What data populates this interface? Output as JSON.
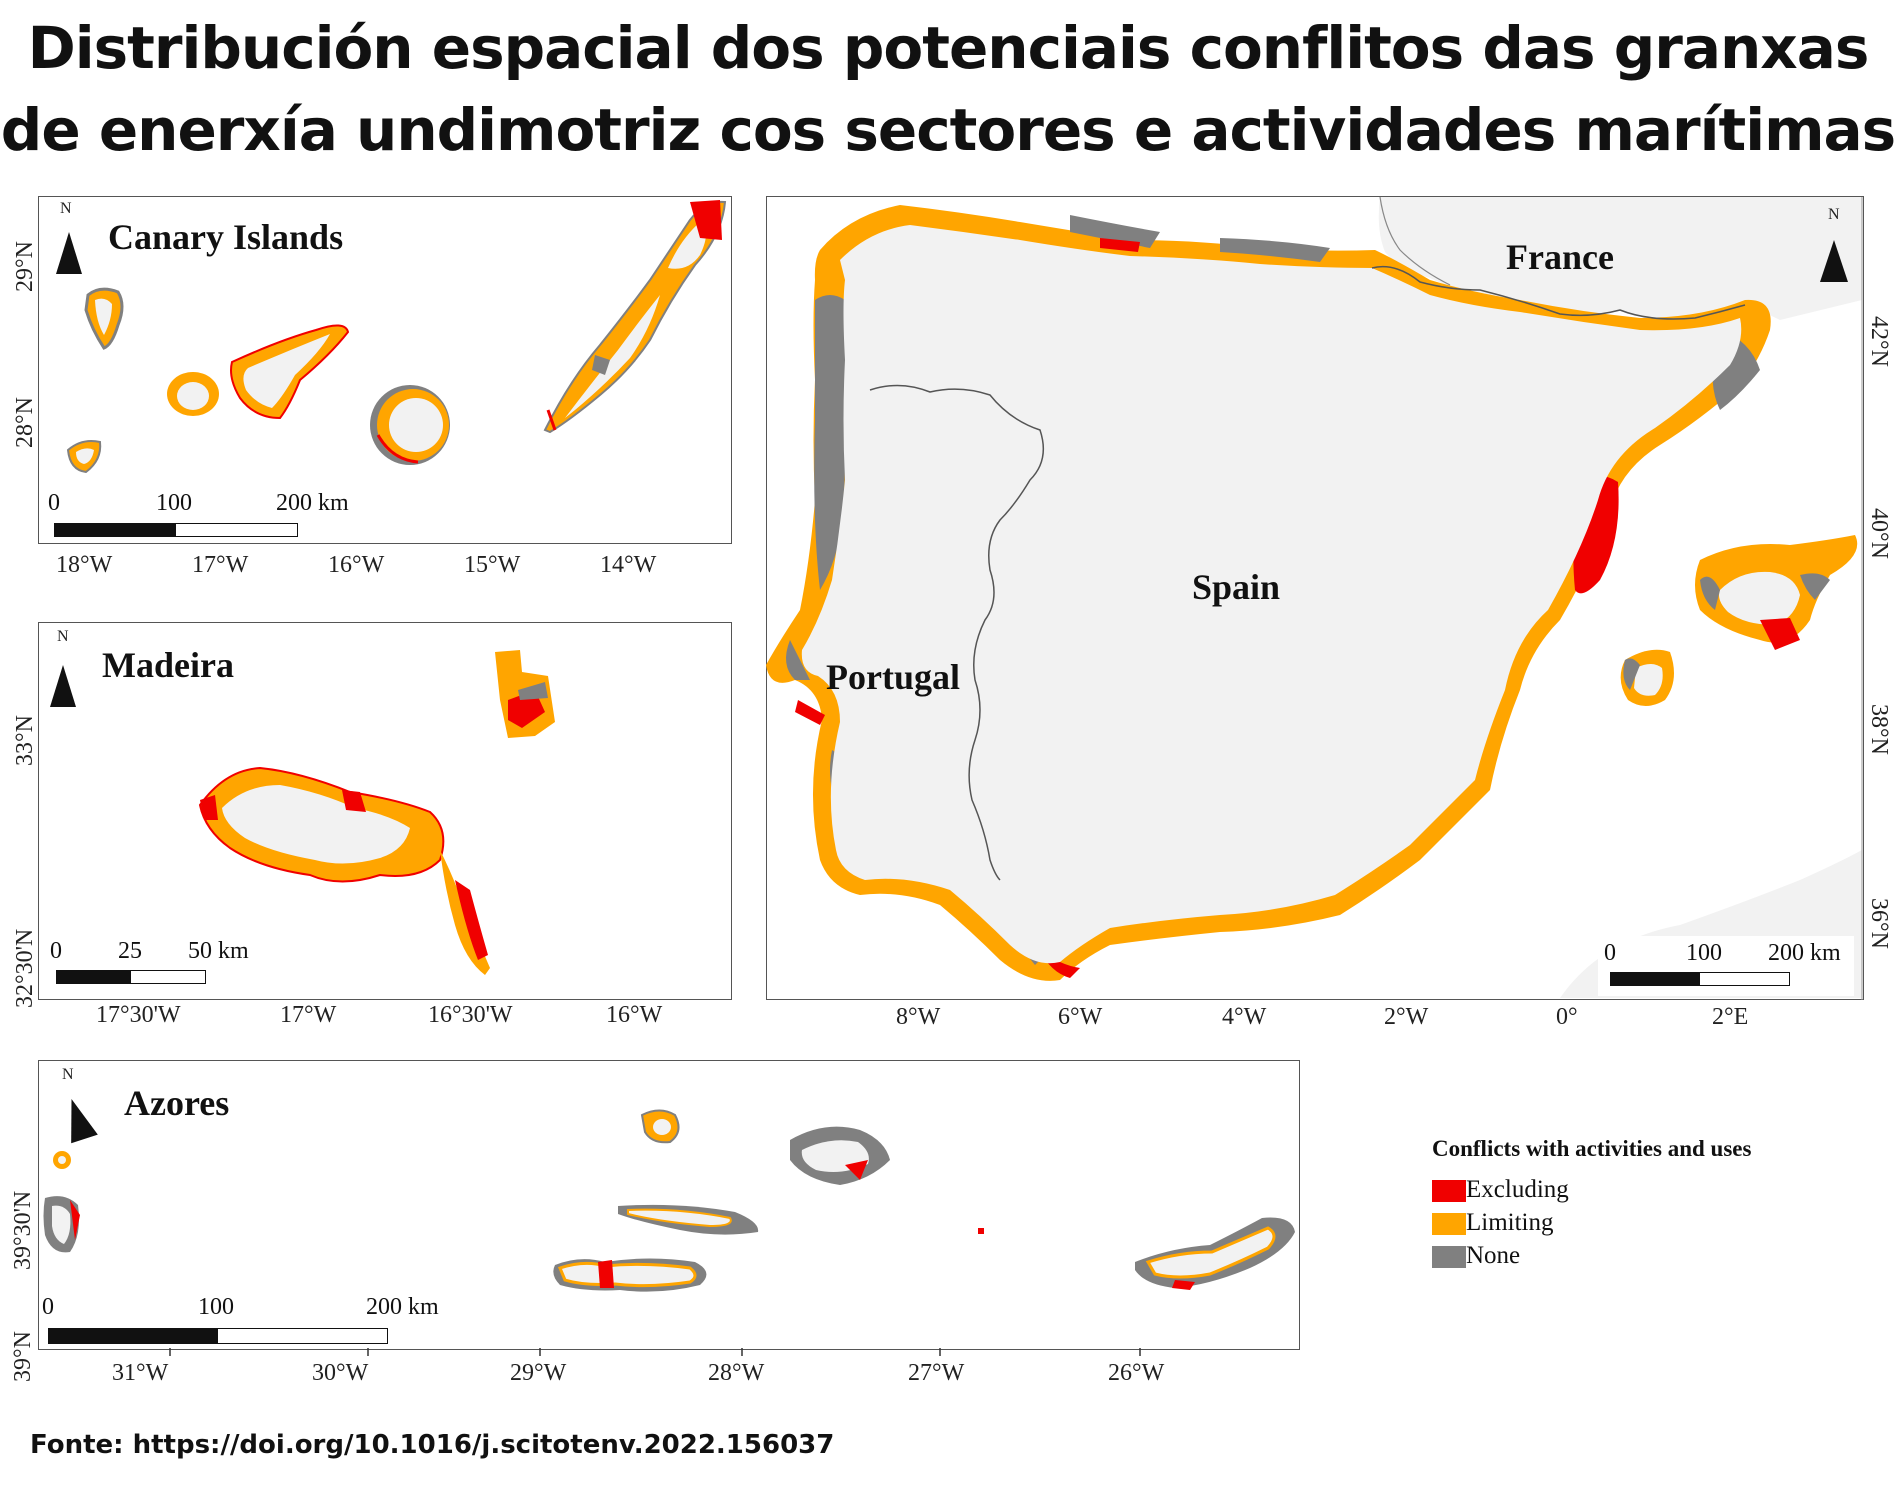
{
  "title_line1": "Distribución espacial dos potenciais conflitos das granxas",
  "title_line2": "de enerxía undimotriz cos sectores e actividades marítimas",
  "source": "Fonte: https://doi.org/10.1016/j.scitotenv.2022.156037",
  "colors": {
    "excluding": "#f00000",
    "limiting": "#ffa500",
    "none": "#808080",
    "land": "#f2f2f2"
  },
  "canary": {
    "label": "Canary Islands",
    "north_arrow": "N",
    "lat_ticks": [
      "29°N",
      "28°N"
    ],
    "lon_ticks": [
      "18°W",
      "17°W",
      "16°W",
      "15°W",
      "14°W"
    ],
    "scalebar": [
      "0",
      "100",
      "200 km"
    ]
  },
  "madeira": {
    "label": "Madeira",
    "north_arrow": "N",
    "lat_ticks": [
      "33°N",
      "32°30'N"
    ],
    "lon_ticks": [
      "17°30'W",
      "17°W",
      "16°30'W",
      "16°W"
    ],
    "scalebar": [
      "0",
      "25",
      "50 km"
    ]
  },
  "azores": {
    "label": "Azores",
    "north_arrow": "N",
    "lat_ticks": [
      "39°30'N",
      "39°N"
    ],
    "lon_ticks": [
      "31°W",
      "30°W",
      "29°W",
      "28°W",
      "27°W",
      "26°W"
    ],
    "scalebar": [
      "0",
      "100",
      "200 km"
    ]
  },
  "iberia": {
    "countries": [
      "France",
      "Spain",
      "Portugal"
    ],
    "north_arrow": "N",
    "lat_ticks": [
      "42°N",
      "40°N",
      "38°N",
      "36°N"
    ],
    "lon_ticks": [
      "8°W",
      "6°W",
      "4°W",
      "2°W",
      "0°",
      "2°E"
    ],
    "scalebar": [
      "0",
      "100",
      "200 km"
    ]
  },
  "legend": {
    "title": "Conflicts with activities and uses",
    "items": [
      {
        "label": "Excluding",
        "color": "#f00000"
      },
      {
        "label": "Limiting",
        "color": "#ffa500"
      },
      {
        "label": "None",
        "color": "#808080"
      }
    ]
  }
}
